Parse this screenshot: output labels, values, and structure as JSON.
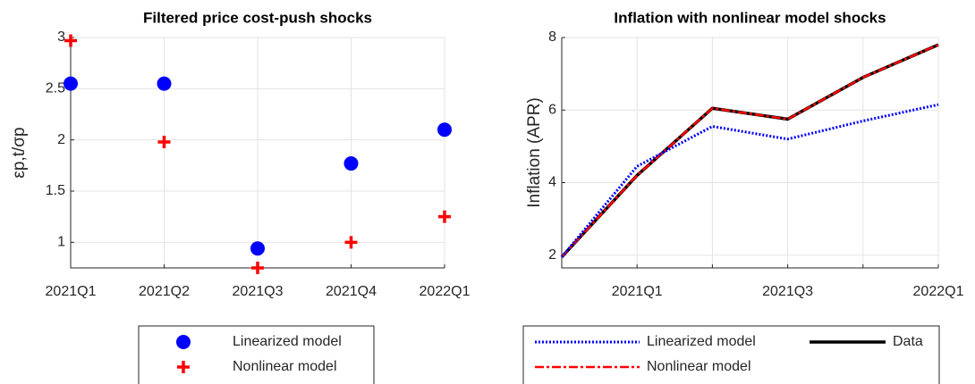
{
  "chart_data": [
    {
      "type": "scatter",
      "title": "Filtered price cost-push shocks",
      "ylabel": "εp,t/σp",
      "categories": [
        "2021Q1",
        "2021Q2",
        "2021Q3",
        "2021Q4",
        "2022Q1"
      ],
      "series": [
        {
          "name": "Linearized model",
          "color": "#0000ff",
          "marker": "circle",
          "values": [
            2.55,
            2.55,
            0.94,
            1.77,
            2.1
          ]
        },
        {
          "name": "Nonlinear model",
          "color": "#ff0000",
          "marker": "plus",
          "values": [
            2.97,
            1.98,
            0.75,
            1.0,
            1.25
          ]
        }
      ],
      "ylim": [
        0.75,
        3
      ],
      "yticks": [
        1,
        1.5,
        2,
        2.5,
        3
      ],
      "grid": true
    },
    {
      "type": "line",
      "title": "Inflation with nonlinear model shocks",
      "ylabel": "Inflation (APR)",
      "categories": [
        null,
        "2021Q1",
        null,
        "2021Q3",
        null,
        "2022Q1"
      ],
      "series": [
        {
          "name": "Linearized model",
          "color": "#0000ff",
          "linestyle": "dotted",
          "values": [
            1.95,
            4.45,
            5.55,
            5.2,
            5.7,
            6.15
          ]
        },
        {
          "name": "Nonlinear model",
          "color": "#ff0000",
          "linestyle": "dashdot",
          "values": [
            1.95,
            4.2,
            6.05,
            5.75,
            6.9,
            7.8
          ]
        },
        {
          "name": "Data",
          "color": "#000000",
          "linestyle": "solid",
          "values": [
            1.95,
            4.2,
            6.05,
            5.75,
            6.9,
            7.8
          ]
        }
      ],
      "ylim": [
        1.65,
        8
      ],
      "yticks": [
        2,
        4,
        6,
        8
      ],
      "grid": true
    }
  ]
}
